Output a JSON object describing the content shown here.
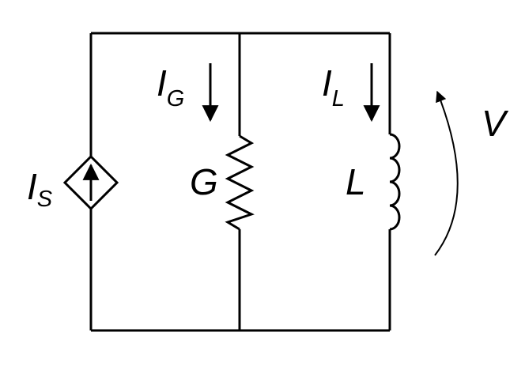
{
  "diagram": {
    "labels": {
      "source_current": {
        "main": "I",
        "sub": "S"
      },
      "conductance_current": {
        "main": "I",
        "sub": "G"
      },
      "inductor_current": {
        "main": "I",
        "sub": "L"
      },
      "conductance": "G",
      "inductance": "L",
      "voltage": "V"
    },
    "colors": {
      "stroke": "#000000",
      "background": "#ffffff"
    }
  }
}
